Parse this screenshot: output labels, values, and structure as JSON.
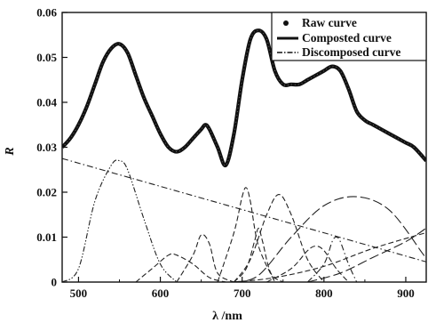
{
  "chart_data": {
    "type": "line",
    "title": "",
    "xlabel": "λ /nm",
    "ylabel": "R",
    "xlim": [
      480,
      925
    ],
    "ylim": [
      0,
      0.06
    ],
    "x_ticks": [
      500,
      600,
      700,
      800,
      900
    ],
    "y_ticks": [
      0,
      0.01,
      0.02,
      0.03,
      0.04,
      0.05,
      0.06
    ],
    "y_tick_labels": [
      "0",
      "0.01",
      "0.02",
      "0.03",
      "0.04",
      "0.05",
      "0.06"
    ],
    "grid": false,
    "legend_position": "top-right",
    "legend": [
      "Raw curve",
      "Composted curve",
      "Discomposed curve"
    ],
    "series": [
      {
        "name": "Composted curve",
        "style": "solid-thick",
        "x": [
          480,
          490,
          500,
          510,
          520,
          530,
          540,
          550,
          560,
          570,
          580,
          590,
          600,
          610,
          620,
          630,
          640,
          650,
          655,
          660,
          670,
          680,
          690,
          700,
          710,
          720,
          730,
          740,
          750,
          760,
          770,
          780,
          790,
          800,
          810,
          820,
          830,
          840,
          850,
          860,
          870,
          880,
          890,
          900,
          910,
          925
        ],
        "y": [
          0.03,
          0.032,
          0.035,
          0.039,
          0.044,
          0.049,
          0.052,
          0.053,
          0.051,
          0.046,
          0.041,
          0.037,
          0.033,
          0.03,
          0.029,
          0.03,
          0.032,
          0.034,
          0.035,
          0.034,
          0.03,
          0.026,
          0.033,
          0.045,
          0.054,
          0.056,
          0.054,
          0.047,
          0.044,
          0.044,
          0.044,
          0.045,
          0.046,
          0.047,
          0.048,
          0.047,
          0.043,
          0.038,
          0.036,
          0.035,
          0.034,
          0.033,
          0.032,
          0.031,
          0.03,
          0.027
        ]
      },
      {
        "name": "Raw curve",
        "style": "dotted",
        "x": [
          480,
          490,
          500,
          510,
          520,
          530,
          540,
          550,
          560,
          570,
          580,
          590,
          600,
          610,
          620,
          630,
          640,
          650,
          655,
          660,
          670,
          680,
          690,
          700,
          710,
          720,
          730,
          740,
          750,
          760,
          770,
          780,
          790,
          800,
          810,
          820,
          830,
          840,
          850,
          860,
          870,
          880,
          890,
          900,
          910,
          925
        ],
        "y": [
          0.03,
          0.032,
          0.035,
          0.039,
          0.044,
          0.049,
          0.052,
          0.053,
          0.051,
          0.046,
          0.041,
          0.037,
          0.033,
          0.03,
          0.029,
          0.03,
          0.032,
          0.034,
          0.035,
          0.034,
          0.03,
          0.026,
          0.033,
          0.045,
          0.054,
          0.056,
          0.054,
          0.047,
          0.044,
          0.044,
          0.044,
          0.045,
          0.046,
          0.047,
          0.048,
          0.047,
          0.043,
          0.038,
          0.036,
          0.035,
          0.034,
          0.033,
          0.032,
          0.031,
          0.03,
          0.027
        ]
      },
      {
        "name": "Discomposed curve",
        "style": "dash-dot",
        "components": [
          {
            "x": [
              480,
              925
            ],
            "y": [
              0.0275,
              0.0045
            ],
            "dash": "dashdot"
          },
          {
            "x": [
              480,
              500,
              520,
              540,
              550,
              560,
              580,
              600,
              620
            ],
            "y": [
              0.0,
              0.003,
              0.018,
              0.026,
              0.027,
              0.025,
              0.014,
              0.004,
              0.0
            ],
            "dash": "dashdotdot"
          },
          {
            "x": [
              570,
              590,
              610,
              620,
              640,
              660,
              680
            ],
            "y": [
              0.0,
              0.003,
              0.006,
              0.006,
              0.004,
              0.001,
              0.0
            ],
            "dash": "dash"
          },
          {
            "x": [
              620,
              640,
              650,
              660,
              670,
              690
            ],
            "y": [
              0.0,
              0.006,
              0.0105,
              0.0085,
              0.002,
              0.0
            ],
            "dash": "dash"
          },
          {
            "x": [
              670,
              690,
              700,
              705,
              710,
              720,
              740
            ],
            "y": [
              0.0,
              0.011,
              0.019,
              0.021,
              0.018,
              0.008,
              0.0
            ],
            "dash": "dash"
          },
          {
            "x": [
              690,
              705,
              715,
              720,
              725,
              735,
              750
            ],
            "y": [
              0.0,
              0.003,
              0.009,
              0.012,
              0.009,
              0.002,
              0.0
            ],
            "dash": "dash"
          },
          {
            "x": [
              690,
              710,
              730,
              745,
              760,
              780,
              800
            ],
            "y": [
              0.0,
              0.005,
              0.015,
              0.0195,
              0.015,
              0.005,
              0.0
            ],
            "dash": "dash"
          },
          {
            "x": [
              730,
              760,
              780,
              790,
              800,
              815,
              830
            ],
            "y": [
              0.0,
              0.003,
              0.007,
              0.008,
              0.007,
              0.003,
              0.0
            ],
            "dash": "dash"
          },
          {
            "x": [
              780,
              800,
              810,
              815,
              820,
              830,
              840
            ],
            "y": [
              0.0,
              0.004,
              0.009,
              0.01,
              0.009,
              0.004,
              0.0
            ],
            "dash": "dashdot"
          },
          {
            "x": [
              690,
              720,
              760,
              800,
              840,
              880,
              920,
              925
            ],
            "y": [
              0.0,
              0.0015,
              0.01,
              0.017,
              0.019,
              0.016,
              0.0065,
              0.005
            ],
            "dash": "longdash"
          },
          {
            "x": [
              780,
              820,
              860,
              900,
              925
            ],
            "y": [
              0.0,
              0.002,
              0.0055,
              0.009,
              0.012
            ],
            "dash": "longdash"
          },
          {
            "x": [
              690,
              740,
              800,
              860,
              925
            ],
            "y": [
              0.0,
              0.001,
              0.0035,
              0.0075,
              0.011
            ],
            "dash": "dash"
          }
        ]
      }
    ]
  }
}
